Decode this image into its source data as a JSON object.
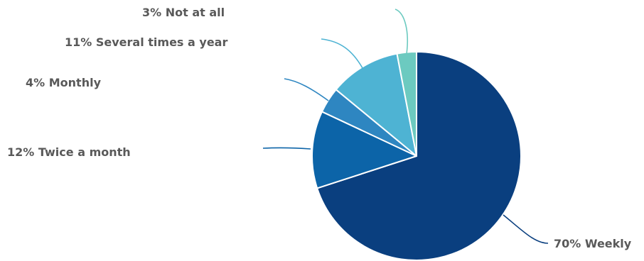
{
  "chart_data": {
    "type": "pie",
    "start_angle_deg": 0,
    "direction": "clockwise",
    "slices": [
      {
        "label": "70% Weekly",
        "category": "Weekly",
        "value": 70,
        "color": "#0a3f7f"
      },
      {
        "label": "12% Twice a month",
        "category": "Twice a month",
        "value": 12,
        "color": "#0c64a8"
      },
      {
        "label": "4% Monthly",
        "category": "Monthly",
        "value": 4,
        "color": "#2e86c1"
      },
      {
        "label": "11% Several times a year",
        "category": "Several times a year",
        "value": 11,
        "color": "#4eb3d3"
      },
      {
        "label": "3% Not at all",
        "category": "Not at all",
        "value": 3,
        "color": "#6ccac0"
      }
    ],
    "title": "",
    "legend": "none",
    "data_labels": "outside-with-leader-lines"
  }
}
